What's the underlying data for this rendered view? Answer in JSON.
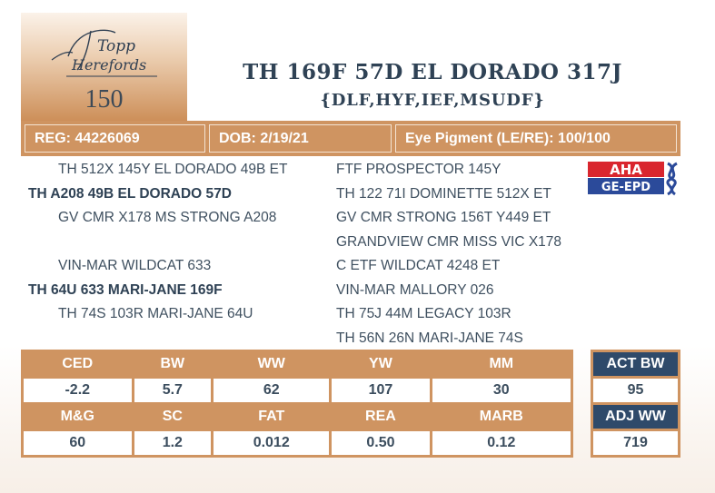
{
  "logo": {
    "brand_line1": "Topp",
    "brand_line2": "Herefords"
  },
  "lot_number": "150",
  "animal": {
    "name": "TH 169F 57D EL DORADO 317J",
    "genetic_tags": "{DLF,HYF,IEF,MSUDF}"
  },
  "info_bar": {
    "reg": "REG: 44226069",
    "dob": "DOB: 2/19/21",
    "eye_pigment": "Eye Pigment (LE/RE): 100/100"
  },
  "pedigree": {
    "sire_side": [
      {
        "text": "TH 512X 145Y EL DORADO 49B ET",
        "bold": false
      },
      {
        "text": "TH A208 49B EL DORADO 57D",
        "bold": true
      },
      {
        "text": "GV CMR X178 MS STRONG A208",
        "bold": false
      }
    ],
    "dam_side": [
      {
        "text": "VIN-MAR WILDCAT 633",
        "bold": false
      },
      {
        "text": "TH 64U 633 MARI-JANE 169F",
        "bold": true
      },
      {
        "text": "TH 74S 103R MARI-JANE 64U",
        "bold": false
      }
    ],
    "right_column": [
      "FTF PROSPECTOR 145Y",
      "TH 122 71I DOMINETTE 512X ET",
      "GV CMR STRONG 156T Y449 ET",
      "GRANDVIEW CMR MISS VIC X178",
      "C ETF WILDCAT 4248 ET",
      "VIN-MAR MALLORY 026",
      "TH 75J 44M LEGACY 103R",
      "TH 56N 26N MARI-JANE 74S"
    ]
  },
  "aha_logo": {
    "top": "AHA",
    "bottom": "GE-EPD"
  },
  "epd": {
    "row1_headers": [
      "CED",
      "BW",
      "WW",
      "YW",
      "MM"
    ],
    "row1_values": [
      "-2.2",
      "5.7",
      "62",
      "107",
      "30"
    ],
    "row2_headers": [
      "M&G",
      "SC",
      "FAT",
      "REA",
      "MARB"
    ],
    "row2_values": [
      "60",
      "1.2",
      "0.012",
      "0.50",
      "0.12"
    ]
  },
  "actual": {
    "act_bw_label": "ACT BW",
    "act_bw_value": "95",
    "adj_ww_label": "ADJ WW",
    "adj_ww_value": "719"
  },
  "colors": {
    "accent_tan": "#cf9461",
    "navy": "#2f4a6a",
    "text": "#3b4d5e",
    "aha_red": "#d9262e",
    "aha_blue": "#2b4a9a"
  }
}
